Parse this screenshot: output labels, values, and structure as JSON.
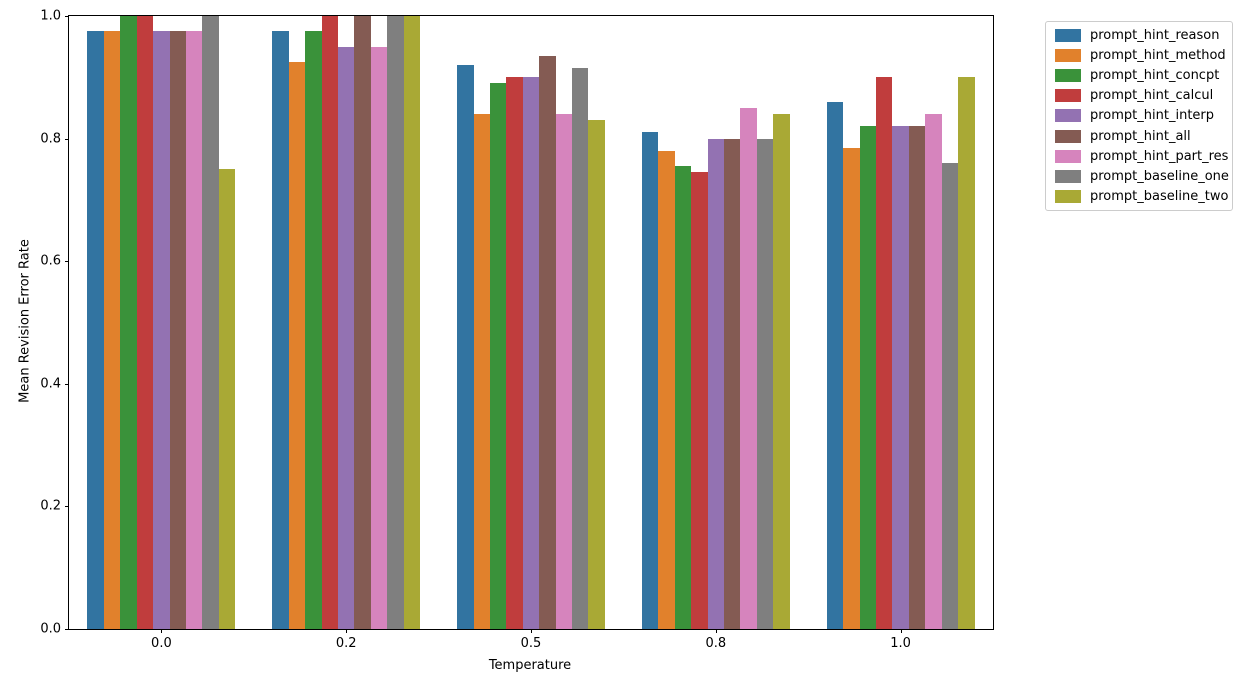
{
  "chart_data": {
    "type": "bar",
    "title": "",
    "xlabel": "Temperature",
    "ylabel": "Mean Revision Error Rate",
    "categories": [
      "0.0",
      "0.2",
      "0.5",
      "0.8",
      "1.0"
    ],
    "series": [
      {
        "name": "prompt_hint_reason",
        "color": "#3274a1",
        "values": [
          0.975,
          0.975,
          0.92,
          0.81,
          0.86
        ]
      },
      {
        "name": "prompt_hint_method",
        "color": "#e1812c",
        "values": [
          0.975,
          0.925,
          0.84,
          0.78,
          0.785
        ]
      },
      {
        "name": "prompt_hint_concpt",
        "color": "#3a923a",
        "values": [
          1.0,
          0.975,
          0.89,
          0.755,
          0.82
        ]
      },
      {
        "name": "prompt_hint_calcul",
        "color": "#c03d3d",
        "values": [
          1.0,
          1.0,
          0.9,
          0.745,
          0.9
        ]
      },
      {
        "name": "prompt_hint_interp",
        "color": "#9372b2",
        "values": [
          0.975,
          0.95,
          0.9,
          0.8,
          0.82
        ]
      },
      {
        "name": "prompt_hint_all",
        "color": "#845b53",
        "values": [
          0.975,
          1.0,
          0.935,
          0.8,
          0.82
        ]
      },
      {
        "name": "prompt_hint_part_res",
        "color": "#d684bd",
        "values": [
          0.975,
          0.95,
          0.84,
          0.85,
          0.84
        ]
      },
      {
        "name": "prompt_baseline_one",
        "color": "#7f7f7f",
        "values": [
          1.0,
          1.0,
          0.915,
          0.8,
          0.76
        ]
      },
      {
        "name": "prompt_baseline_two",
        "color": "#a9a935",
        "values": [
          0.75,
          1.0,
          0.83,
          0.84,
          0.9
        ]
      }
    ],
    "ylim": [
      0.0,
      1.0
    ],
    "yticks": [
      "0.0",
      "0.2",
      "0.4",
      "0.6",
      "0.8",
      "1.0"
    ],
    "grid": false,
    "legend_position": "outside-right",
    "group_width_fraction": 0.8
  }
}
